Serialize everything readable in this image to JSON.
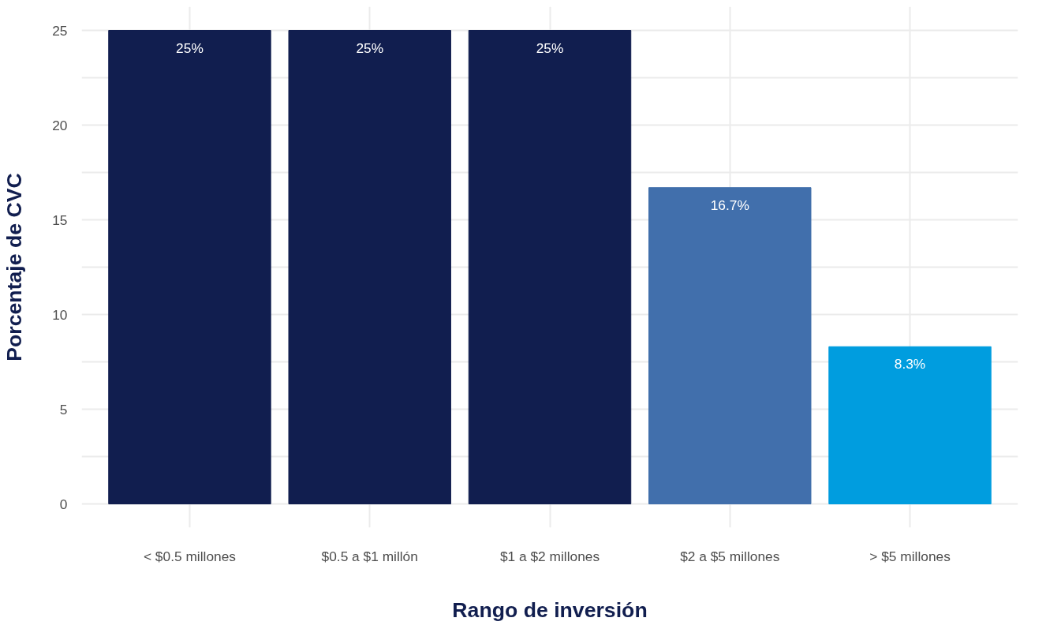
{
  "chart_data": {
    "type": "bar",
    "xlabel": "Rango de inversión",
    "ylabel": "Porcentaje de CVC",
    "categories": [
      "< $0.5 millones",
      "$0.5 a $1 millón",
      "$1 a $2 millones",
      "$2 a $5 millones",
      "> $5 millones"
    ],
    "values": [
      25,
      25,
      25,
      16.7,
      8.3
    ],
    "colors": [
      "#111e4f",
      "#111e4f",
      "#111e4f",
      "#416fac",
      "#009ddf"
    ],
    "value_labels": [
      "25%",
      "25%",
      "25%",
      "16.7%",
      "8.3%"
    ],
    "ylim": [
      -1.25,
      26.25
    ],
    "yticks": [
      0,
      {
        "value": 2.5,
        "label": null
      },
      5,
      {
        "value": 7.5,
        "label": null
      },
      10,
      {
        "value": 12.5,
        "label": null
      },
      15,
      {
        "value": 17.5,
        "label": null
      },
      20,
      {
        "value": 22.5,
        "label": null
      },
      25
    ],
    "grid": true
  }
}
